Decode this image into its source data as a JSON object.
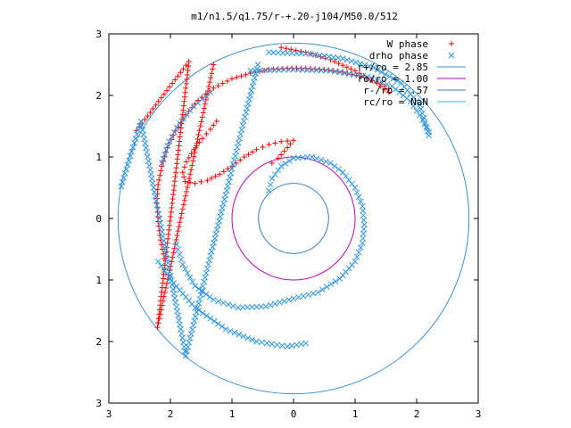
{
  "chart_data": {
    "type": "scatter",
    "title": "m1/n1.5/q1.75/r-+.20-j104/M50.0/512",
    "xlim": [
      -3,
      3
    ],
    "ylim": [
      -3,
      3
    ],
    "x_tick_values": [
      -3,
      -2,
      -1,
      0,
      1,
      2,
      3
    ],
    "x_tick_labels": [
      "3",
      "2",
      "1",
      "0",
      "1",
      "2",
      "3"
    ],
    "y_tick_values": [
      -3,
      -2,
      -1,
      0,
      1,
      2,
      3
    ],
    "y_tick_labels": [
      "3",
      "2",
      "1",
      "0",
      "1",
      "2",
      "3"
    ],
    "grid": false,
    "legend_position": "top-right",
    "colors": {
      "w_phase": "#ff0000",
      "drho_phase": "#2d96e6",
      "r_plus": "#3a91d6",
      "ro": "#c000c0",
      "r_minus": "#2f7fc6",
      "rc": "#22c4d8"
    },
    "series": [
      {
        "name": "W phase",
        "kind": "points",
        "marker": "plus",
        "segments": [
          [
            [
              1.55,
              2.11
            ],
            [
              1.35,
              2.22
            ],
            [
              1.1,
              2.31
            ],
            [
              0.8,
              2.38
            ],
            [
              0.5,
              2.42
            ],
            [
              0.2,
              2.44
            ],
            [
              -0.1,
              2.44
            ],
            [
              -0.4,
              2.42
            ],
            [
              -0.7,
              2.36
            ],
            [
              -1.0,
              2.27
            ],
            [
              -1.3,
              2.12
            ],
            [
              -1.55,
              1.92
            ],
            [
              -1.75,
              1.68
            ],
            [
              -1.92,
              1.42
            ],
            [
              -2.05,
              1.15
            ],
            [
              -2.14,
              0.85
            ],
            [
              -2.2,
              0.55
            ],
            [
              -2.22,
              0.25
            ],
            [
              -2.2,
              -0.05
            ],
            [
              -2.16,
              -0.35
            ],
            [
              -2.1,
              -0.65
            ]
          ],
          [
            [
              -1.25,
              1.58
            ],
            [
              -1.35,
              1.45
            ],
            [
              -1.48,
              1.3
            ],
            [
              -1.62,
              1.12
            ],
            [
              -1.74,
              0.92
            ],
            [
              -1.8,
              0.75
            ],
            [
              -1.76,
              0.6
            ],
            [
              -1.6,
              0.57
            ],
            [
              -1.4,
              0.62
            ],
            [
              -1.2,
              0.72
            ],
            [
              -1.0,
              0.85
            ],
            [
              -0.8,
              1.0
            ],
            [
              -0.6,
              1.12
            ],
            [
              -0.4,
              1.2
            ],
            [
              -0.2,
              1.25
            ],
            [
              0.0,
              1.27
            ],
            [
              -0.1,
              1.15
            ],
            [
              -0.25,
              0.98
            ],
            [
              -0.35,
              0.9
            ]
          ],
          [
            [
              -0.2,
              2.78
            ],
            [
              0.2,
              2.7
            ],
            [
              0.6,
              2.58
            ],
            [
              1.0,
              2.4
            ],
            [
              1.35,
              2.2
            ],
            [
              1.55,
              2.05
            ]
          ],
          [
            [
              -2.55,
              1.43
            ],
            [
              -1.7,
              2.55
            ],
            [
              -2.21,
              -1.77
            ],
            [
              -1.3,
              2.5
            ]
          ]
        ]
      },
      {
        "name": "drho phase",
        "kind": "points",
        "marker": "cross",
        "segments": [
          [
            [
              -0.4,
              2.7
            ],
            [
              0.2,
              2.68
            ],
            [
              0.8,
              2.6
            ],
            [
              1.3,
              2.45
            ],
            [
              1.75,
              2.2
            ],
            [
              2.05,
              1.85
            ],
            [
              2.2,
              1.35
            ]
          ],
          [
            [
              -0.7,
              2.4
            ],
            [
              0.0,
              2.42
            ],
            [
              0.6,
              2.4
            ],
            [
              1.2,
              2.3
            ],
            [
              1.6,
              2.15
            ],
            [
              1.9,
              1.9
            ],
            [
              2.1,
              1.6
            ],
            [
              2.2,
              1.4
            ]
          ],
          [
            [
              -1.35,
              2.05
            ],
            [
              -1.62,
              1.82
            ],
            [
              -1.85,
              1.55
            ],
            [
              -2.02,
              1.25
            ],
            [
              -2.14,
              0.9
            ]
          ],
          [
            [
              -0.4,
              0.45
            ],
            [
              -0.35,
              0.65
            ],
            [
              -0.2,
              0.85
            ],
            [
              0.0,
              0.98
            ],
            [
              0.3,
              1.0
            ],
            [
              0.6,
              0.9
            ],
            [
              0.8,
              0.75
            ],
            [
              1.0,
              0.5
            ],
            [
              1.12,
              0.2
            ],
            [
              1.15,
              -0.1
            ],
            [
              1.12,
              -0.4
            ],
            [
              1.0,
              -0.7
            ],
            [
              0.75,
              -0.98
            ],
            [
              0.4,
              -1.2
            ],
            [
              0.0,
              -1.3
            ],
            [
              -0.45,
              -1.43
            ],
            [
              -0.9,
              -1.45
            ],
            [
              -1.3,
              -1.32
            ],
            [
              -1.6,
              -1.1
            ],
            [
              -1.8,
              -0.75
            ],
            [
              -1.9,
              -0.42
            ]
          ],
          [
            [
              -2.2,
              -0.7
            ],
            [
              -1.95,
              -1.05
            ],
            [
              -1.6,
              -1.45
            ],
            [
              -1.1,
              -1.8
            ],
            [
              -0.6,
              -2.0
            ],
            [
              -0.1,
              -2.08
            ],
            [
              0.2,
              -2.03
            ]
          ],
          [
            [
              -2.8,
              0.52
            ],
            [
              -2.48,
              1.58
            ],
            [
              -1.75,
              -2.23
            ],
            [
              -0.58,
              2.5
            ]
          ]
        ]
      },
      {
        "name": "r+/ro = 2.85",
        "kind": "circle",
        "radius": 2.85
      },
      {
        "name": "ro/ro = 1.00",
        "kind": "circle",
        "radius": 1.0
      },
      {
        "name": "r-/ro = .57",
        "kind": "circle",
        "radius": 0.57
      },
      {
        "name": "rc/ro = NaN",
        "kind": "circle",
        "radius": null
      }
    ]
  }
}
